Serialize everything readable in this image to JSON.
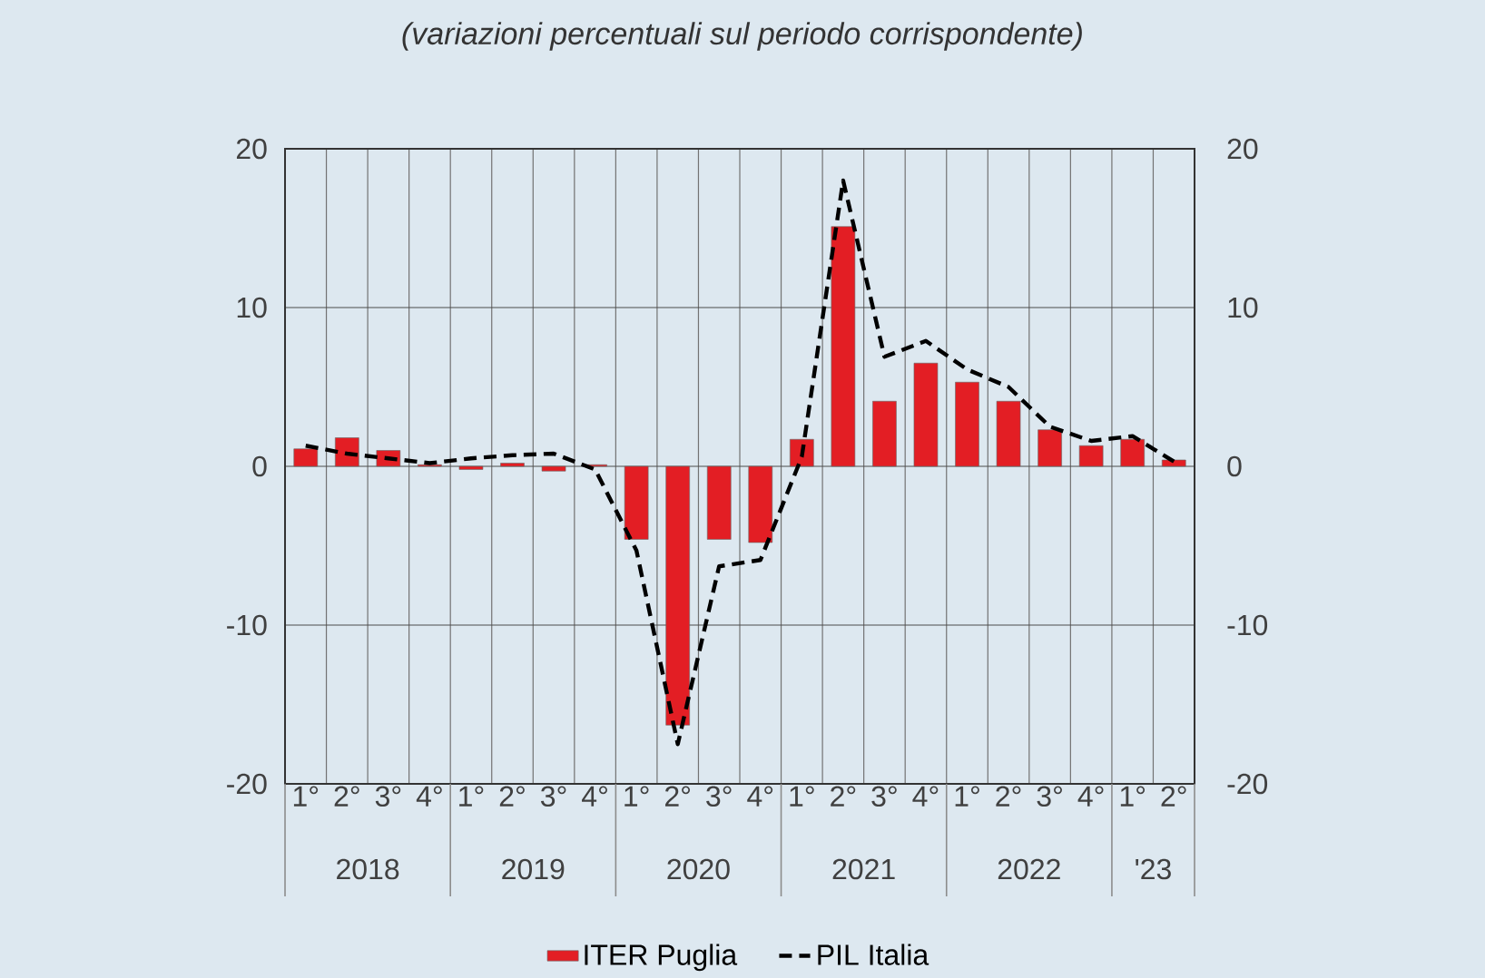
{
  "chart_data": {
    "type": "bar",
    "subtitle": "(variazioni percentuali sul periodo corrispondente)",
    "categories": [
      "1°",
      "2°",
      "3°",
      "4°",
      "1°",
      "2°",
      "3°",
      "4°",
      "1°",
      "2°",
      "3°",
      "4°",
      "1°",
      "2°",
      "3°",
      "4°",
      "1°",
      "2°",
      "3°",
      "4°",
      "1°",
      "2°"
    ],
    "annotations": [
      "2018",
      "2019",
      "2020",
      "2021",
      "2022",
      "'23"
    ],
    "series": [
      {
        "name": "ITER Puglia",
        "color": "#e31e24",
        "values": [
          1.1,
          1.8,
          1.0,
          0.1,
          -0.2,
          0.2,
          -0.3,
          0.1,
          -4.6,
          -16.3,
          -4.6,
          -4.8,
          1.7,
          15.1,
          4.1,
          6.5,
          5.3,
          4.1,
          2.3,
          1.3,
          1.7,
          0.4
        ]
      },
      {
        "name": "PIL Italia",
        "type": "line",
        "color": "#000000",
        "line_style": "dashed",
        "marker": "none",
        "values": [
          1.3,
          0.8,
          0.5,
          0.2,
          0.5,
          0.7,
          0.8,
          -0.2,
          -5.3,
          -17.5,
          -6.3,
          -5.9,
          0.6,
          18.0,
          6.9,
          7.9,
          6.1,
          5.0,
          2.5,
          1.6,
          1.9,
          0.3
        ]
      }
    ],
    "ylim": [
      -20,
      20
    ],
    "yticks": [
      -20,
      -10,
      0,
      10,
      20
    ],
    "y2lim": [
      -20,
      20
    ],
    "y2ticks": [
      -20,
      -10,
      0,
      10,
      20
    ],
    "grid": true,
    "legend": "bottom"
  }
}
